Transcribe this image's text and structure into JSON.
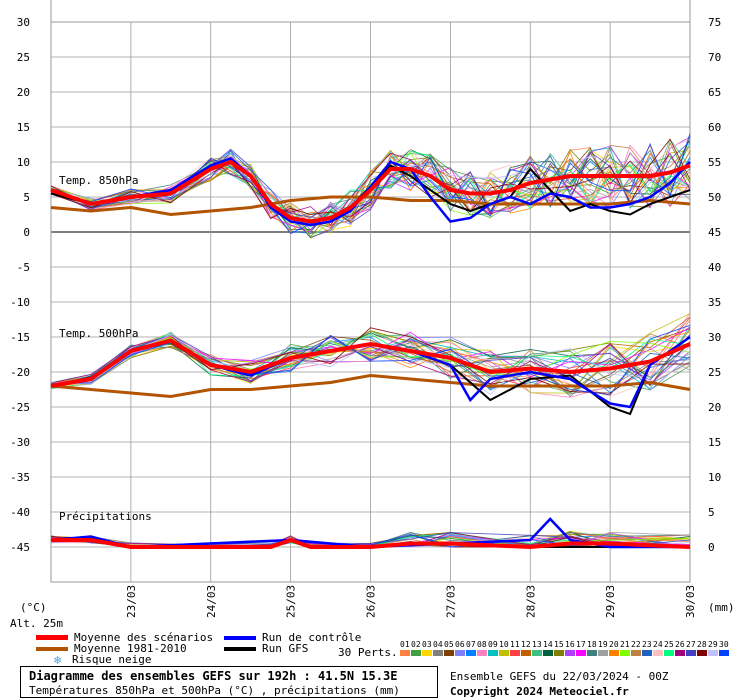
{
  "chart_data": {
    "type": "line",
    "dates": [
      "23/03",
      "24/03",
      "25/03",
      "26/03",
      "27/03",
      "28/03",
      "29/03",
      "30/03"
    ],
    "left_ticks": [
      30,
      25,
      20,
      15,
      10,
      5,
      0,
      -5,
      -10,
      -15,
      -20,
      -25,
      -30,
      -35,
      -40,
      -45
    ],
    "right_ticks": [
      75,
      70,
      65,
      60,
      55,
      50,
      45,
      40,
      35,
      30,
      25,
      20,
      15,
      10,
      5,
      0
    ],
    "ylim": [
      -50,
      30
    ],
    "xlim_days": [
      0,
      8
    ],
    "panel_labels": {
      "t850": "Temp. 850hPa",
      "t500": "Temp. 500hPa",
      "precip": "Précipitations"
    },
    "units_left": "(°C)",
    "units_right": "(mm)",
    "altitude": "Alt. 25m",
    "ensemble_mean_850": [
      [
        0,
        6
      ],
      [
        0.5,
        4
      ],
      [
        1,
        5
      ],
      [
        1.5,
        5.5
      ],
      [
        2,
        9
      ],
      [
        2.25,
        10
      ],
      [
        2.5,
        8
      ],
      [
        2.75,
        4
      ],
      [
        3,
        2
      ],
      [
        3.25,
        1.5
      ],
      [
        3.5,
        2
      ],
      [
        3.75,
        3.5
      ],
      [
        4,
        6
      ],
      [
        4.25,
        9
      ],
      [
        4.5,
        9
      ],
      [
        4.75,
        8
      ],
      [
        5,
        6
      ],
      [
        5.25,
        5.5
      ],
      [
        5.5,
        5.5
      ],
      [
        5.75,
        6
      ],
      [
        6,
        7
      ],
      [
        6.25,
        7.5
      ],
      [
        6.5,
        8
      ],
      [
        6.75,
        8
      ],
      [
        7,
        8
      ],
      [
        7.25,
        8
      ],
      [
        7.5,
        8
      ],
      [
        7.75,
        8.5
      ],
      [
        8,
        9.5
      ]
    ],
    "climatology_850": [
      [
        0,
        3.5
      ],
      [
        0.5,
        3
      ],
      [
        1,
        3.5
      ],
      [
        1.5,
        2.5
      ],
      [
        2,
        3
      ],
      [
        2.5,
        3.5
      ],
      [
        3,
        4.5
      ],
      [
        3.5,
        5
      ],
      [
        4,
        5
      ],
      [
        4.5,
        4.5
      ],
      [
        5,
        4.5
      ],
      [
        5.5,
        4
      ],
      [
        6,
        4
      ],
      [
        6.5,
        4
      ],
      [
        7,
        4
      ],
      [
        7.5,
        4.5
      ],
      [
        8,
        4
      ]
    ],
    "control_850": [
      [
        0,
        6
      ],
      [
        0.5,
        4
      ],
      [
        1,
        5
      ],
      [
        1.5,
        6
      ],
      [
        2,
        9.5
      ],
      [
        2.25,
        10.5
      ],
      [
        2.5,
        8
      ],
      [
        2.75,
        3.5
      ],
      [
        3,
        1.5
      ],
      [
        3.25,
        1
      ],
      [
        3.5,
        1.5
      ],
      [
        3.75,
        3
      ],
      [
        4,
        6.5
      ],
      [
        4.25,
        10
      ],
      [
        4.5,
        9
      ],
      [
        4.75,
        5
      ],
      [
        5,
        1.5
      ],
      [
        5.25,
        2
      ],
      [
        5.5,
        4
      ],
      [
        5.75,
        5
      ],
      [
        6,
        4
      ],
      [
        6.25,
        5.5
      ],
      [
        6.5,
        5
      ],
      [
        6.75,
        3.5
      ],
      [
        7,
        3.5
      ],
      [
        7.25,
        4
      ],
      [
        7.5,
        5
      ],
      [
        7.75,
        7
      ],
      [
        8,
        10
      ]
    ],
    "gfs_850": [
      [
        0,
        5.5
      ],
      [
        0.5,
        4
      ],
      [
        1,
        5
      ],
      [
        1.5,
        6
      ],
      [
        2,
        9
      ],
      [
        2.25,
        10
      ],
      [
        2.5,
        8
      ],
      [
        2.75,
        4
      ],
      [
        3,
        2
      ],
      [
        3.25,
        1.5
      ],
      [
        3.5,
        2
      ],
      [
        3.75,
        3.5
      ],
      [
        4,
        6.5
      ],
      [
        4.25,
        9.5
      ],
      [
        4.5,
        8
      ],
      [
        4.75,
        6
      ],
      [
        5,
        4
      ],
      [
        5.25,
        3
      ],
      [
        5.5,
        4
      ],
      [
        5.75,
        5
      ],
      [
        6,
        9
      ],
      [
        6.25,
        6
      ],
      [
        6.5,
        3
      ],
      [
        6.75,
        4
      ],
      [
        7,
        3
      ],
      [
        7.25,
        2.5
      ],
      [
        7.5,
        4
      ],
      [
        7.75,
        5
      ],
      [
        8,
        6
      ]
    ],
    "ensemble_mean_500": [
      [
        0,
        -22
      ],
      [
        0.5,
        -21
      ],
      [
        1,
        -17
      ],
      [
        1.5,
        -15.5
      ],
      [
        2,
        -19
      ],
      [
        2.5,
        -20
      ],
      [
        3,
        -18
      ],
      [
        3.5,
        -17
      ],
      [
        4,
        -16
      ],
      [
        4.5,
        -17
      ],
      [
        5,
        -18
      ],
      [
        5.5,
        -20
      ],
      [
        6,
        -19.5
      ],
      [
        6.5,
        -20
      ],
      [
        7,
        -19.5
      ],
      [
        7.5,
        -18.5
      ],
      [
        8,
        -16
      ]
    ],
    "climatology_500": [
      [
        0,
        -22
      ],
      [
        0.5,
        -22.5
      ],
      [
        1,
        -23
      ],
      [
        1.5,
        -23.5
      ],
      [
        2,
        -22.5
      ],
      [
        2.5,
        -22.5
      ],
      [
        3,
        -22
      ],
      [
        3.5,
        -21.5
      ],
      [
        4,
        -20.5
      ],
      [
        4.5,
        -21
      ],
      [
        5,
        -21.5
      ],
      [
        5.5,
        -22
      ],
      [
        6,
        -22
      ],
      [
        6.5,
        -22
      ],
      [
        7,
        -22
      ],
      [
        7.5,
        -21.5
      ],
      [
        8,
        -22.5
      ]
    ],
    "control_500": [
      [
        0,
        -22
      ],
      [
        0.5,
        -21
      ],
      [
        1,
        -17
      ],
      [
        1.5,
        -15.5
      ],
      [
        2,
        -19
      ],
      [
        2.5,
        -20.5
      ],
      [
        3,
        -18
      ],
      [
        3.5,
        -17
      ],
      [
        4,
        -16
      ],
      [
        4.5,
        -17
      ],
      [
        5,
        -19
      ],
      [
        5.25,
        -24
      ],
      [
        5.5,
        -21
      ],
      [
        6,
        -20
      ],
      [
        6.5,
        -21
      ],
      [
        7,
        -24.5
      ],
      [
        7.25,
        -25
      ],
      [
        7.5,
        -19
      ],
      [
        8,
        -15
      ]
    ],
    "gfs_500": [
      [
        0,
        -22
      ],
      [
        0.5,
        -21
      ],
      [
        1,
        -17
      ],
      [
        1.5,
        -15.5
      ],
      [
        2,
        -19
      ],
      [
        2.5,
        -20.5
      ],
      [
        3,
        -18
      ],
      [
        3.5,
        -17
      ],
      [
        4,
        -16
      ],
      [
        4.5,
        -17
      ],
      [
        5,
        -19
      ],
      [
        5.5,
        -24
      ],
      [
        6,
        -21
      ],
      [
        6.5,
        -20.5
      ],
      [
        7,
        -25
      ],
      [
        7.25,
        -26
      ],
      [
        7.5,
        -19
      ],
      [
        8,
        -15
      ]
    ],
    "ensemble_mean_precip_mm": [
      [
        0,
        1
      ],
      [
        0.5,
        1
      ],
      [
        1,
        0
      ],
      [
        2,
        0
      ],
      [
        2.75,
        0
      ],
      [
        3,
        1
      ],
      [
        3.25,
        0
      ],
      [
        4,
        0
      ],
      [
        4.5,
        0.5
      ],
      [
        5,
        0.5
      ],
      [
        6,
        0
      ],
      [
        6.5,
        0.5
      ],
      [
        7,
        0.5
      ],
      [
        8,
        0
      ]
    ],
    "control_precip_mm": [
      [
        0,
        1
      ],
      [
        0.5,
        1.5
      ],
      [
        1,
        0
      ],
      [
        3,
        1
      ],
      [
        4,
        0
      ],
      [
        5,
        0.5
      ],
      [
        6,
        1
      ],
      [
        6.25,
        4
      ],
      [
        6.5,
        1
      ],
      [
        7,
        0
      ],
      [
        8,
        0
      ]
    ],
    "gfs_precip_mm": [
      [
        0,
        1
      ],
      [
        0.5,
        1
      ],
      [
        1,
        0
      ],
      [
        3,
        1
      ],
      [
        4,
        0
      ],
      [
        5,
        0.5
      ],
      [
        6,
        0
      ],
      [
        6.5,
        0
      ],
      [
        7,
        0
      ],
      [
        8,
        0
      ]
    ]
  },
  "legend": {
    "mean": "Moyenne des scénarios",
    "clim": "Moyenne 1981-2010",
    "snow": "Risque neige",
    "control": "Run de contrôle",
    "gfs": "Run GFS",
    "perts": "30 Perts.",
    "pert_numbers": [
      "01",
      "02",
      "03",
      "04",
      "05",
      "06",
      "07",
      "08",
      "09",
      "10",
      "11",
      "12",
      "13",
      "14",
      "15",
      "16",
      "17",
      "18",
      "19",
      "20",
      "21",
      "22",
      "23",
      "24",
      "25",
      "26",
      "27",
      "28",
      "29",
      "30"
    ]
  },
  "colors": {
    "mean": "#ff0000",
    "clim": "#b35400",
    "control": "#0000ff",
    "gfs": "#000000",
    "grid": "#9a9a9a",
    "perts": [
      "#ff8040",
      "#40a040",
      "#ffd700",
      "#808080",
      "#804000",
      "#8080ff",
      "#0080ff",
      "#ff80c0",
      "#00c0c0",
      "#c0c000",
      "#ff4040",
      "#c06000",
      "#40c080",
      "#006040",
      "#808000",
      "#b040ff",
      "#ff00ff",
      "#408080",
      "#a0a0a0",
      "#ff8000",
      "#80ff00",
      "#c08040",
      "#2060c0",
      "#ffc0c0",
      "#00ff80",
      "#a00080",
      "#4040c0",
      "#800000",
      "#c0c0ff",
      "#0040ff"
    ]
  },
  "title_box": {
    "line1": "Diagramme des ensembles GEFS sur 192h : 41.5N 15.3E",
    "line2": "Températures 850hPa et 500hPa (°C) , précipitations (mm)"
  },
  "footer": {
    "run": "Ensemble GEFS du 22/03/2024 - 00Z",
    "copyright": "Copyright 2024 Meteociel.fr"
  }
}
